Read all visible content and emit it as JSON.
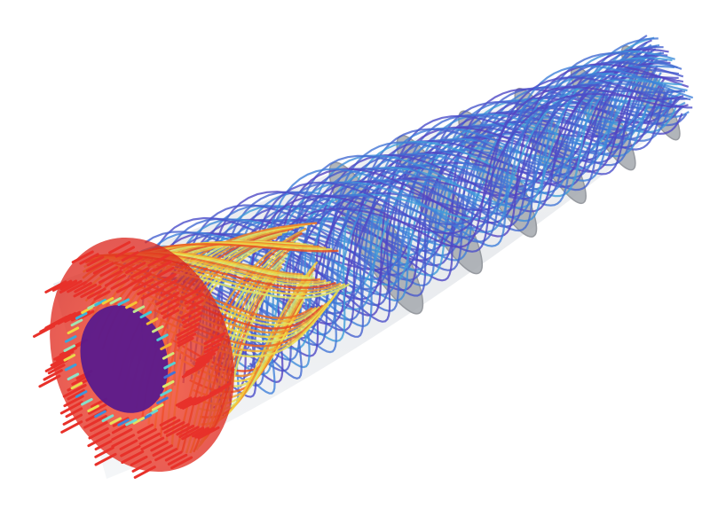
{
  "scene": {
    "subject": "swirling-flow-streamlines-in-pipe",
    "colors": {
      "background": "#ffffff",
      "pipe_wall": "#d9dde3",
      "pipe_edge": "#b9bfc8",
      "baffle": "#a9adb3",
      "baffle_dark": "#8d9197",
      "inlet_disc": "#e8312a",
      "inlet_core": "#5a1a8c",
      "colormap": [
        "#e3231c",
        "#f07a24",
        "#f4d23a",
        "#dfe86a",
        "#8fe3c8",
        "#3fc7d8",
        "#3f7fd9",
        "#4b4fc9",
        "#5b36b8"
      ]
    }
  }
}
